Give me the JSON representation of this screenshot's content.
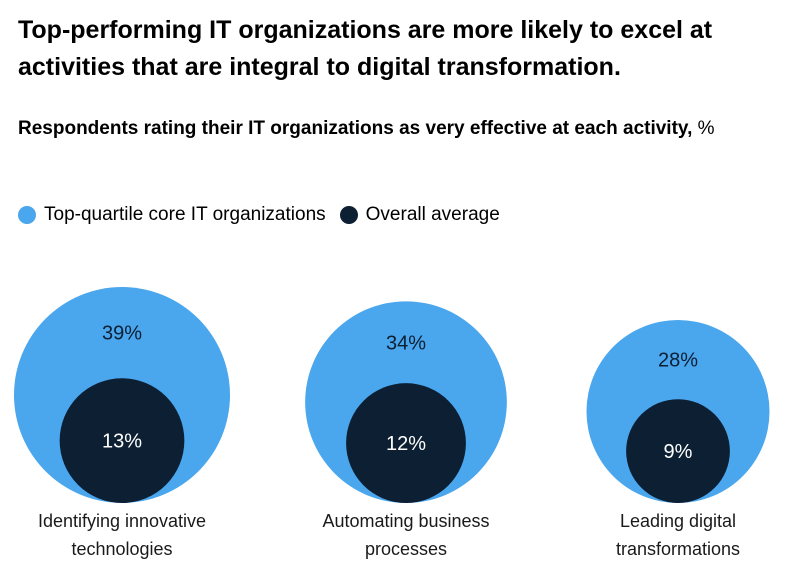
{
  "title": "Top-performing IT organizations are more likely to excel at activities that are integral to digital transformation.",
  "subtitle": {
    "text": "Respondents rating their IT organizations as very effective at each activity,",
    "unit": "%"
  },
  "legend": [
    {
      "label": "Top-quartile core IT organizations",
      "color": "#4aa6ed"
    },
    {
      "label": "Overall average",
      "color": "#0c1f33"
    }
  ],
  "chart_data": {
    "type": "bubble",
    "title": "Top-performing IT organizations are more likely to excel at activities that are integral to digital transformation.",
    "subtitle": "Respondents rating their IT organizations as very effective at each activity, %",
    "categories": [
      "Identifying innovative technologies",
      "Automating business processes",
      "Leading digital transformations"
    ],
    "category_lines": [
      [
        "Identifying innovative",
        "technologies"
      ],
      [
        "Automating business",
        "processes"
      ],
      [
        "Leading digital",
        "transformations"
      ]
    ],
    "series": [
      {
        "name": "Top-quartile core IT organizations",
        "color": "#4aa6ed",
        "values": [
          39,
          34,
          28
        ],
        "labels": [
          "39%",
          "34%",
          "28%"
        ]
      },
      {
        "name": "Overall average",
        "color": "#0c1f33",
        "values": [
          13,
          12,
          9
        ],
        "labels": [
          "13%",
          "12%",
          "9%"
        ]
      }
    ],
    "unit": "%"
  }
}
